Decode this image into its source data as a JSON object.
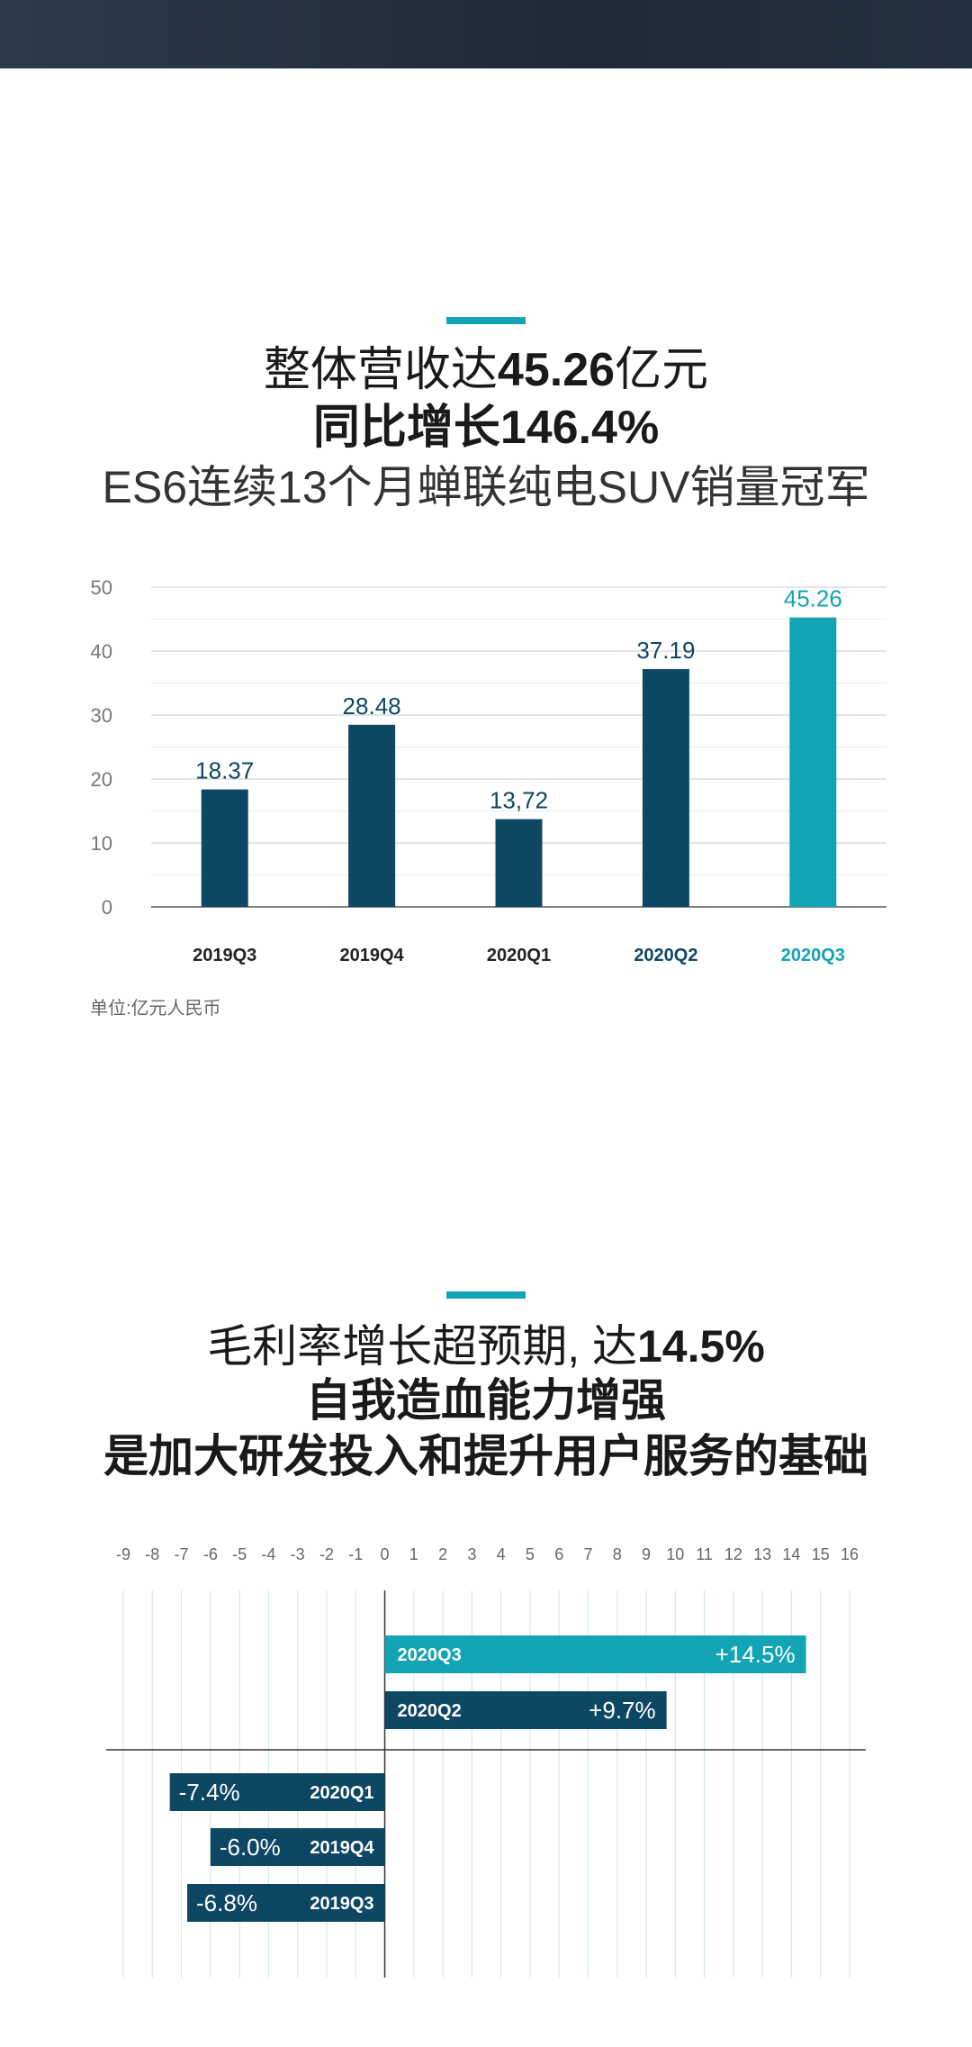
{
  "page": {
    "colors": {
      "dark": "#0e4763",
      "teal": "#12a4b4",
      "header": "#243140"
    },
    "section1": {
      "line1_prefix": "整体营收达",
      "line1_value": "45.26",
      "line1_suffix": "亿元",
      "line2": "同比增长146.4%",
      "line3": "ES6连续13个月蝉联纯电SUV销量冠军",
      "unit": "单位:亿元人民币"
    },
    "section2": {
      "line1_prefix": "毛利率增长超预期, 达",
      "line1_value": "14.5%",
      "line2": "自我造血能力增强",
      "line3": "是加大研发投入和提升用户服务的基础"
    }
  },
  "chart_data": [
    {
      "type": "bar",
      "categories": [
        "2019Q3",
        "2019Q4",
        "2020Q1",
        "2020Q2",
        "2020Q3"
      ],
      "values": [
        18.37,
        28.48,
        13.72,
        37.19,
        45.26
      ],
      "value_labels": [
        "18.37",
        "28.48",
        "13,72",
        "37.19",
        "45.26"
      ],
      "y_ticks": [
        0,
        10,
        20,
        30,
        40,
        50
      ],
      "ylim": [
        0,
        50
      ],
      "bar_colors": [
        "#0e4763",
        "#0e4763",
        "#0e4763",
        "#0e4763",
        "#12a4b4"
      ],
      "category_label_colors": [
        "#222222",
        "#222222",
        "#222222",
        "#0e4763",
        "#12a4b4"
      ],
      "grid": true
    },
    {
      "type": "bar",
      "orientation": "horizontal",
      "categories": [
        "2020Q3",
        "2020Q2",
        "2020Q1",
        "2019Q4",
        "2019Q3"
      ],
      "values": [
        14.5,
        9.7,
        -7.4,
        -6.0,
        -6.8
      ],
      "value_labels": [
        "+14.5%",
        "+9.7%",
        "-7.4%",
        "-6.0%",
        "-6.8%"
      ],
      "x_ticks": [
        -9,
        -8,
        -7,
        -6,
        -5,
        -4,
        -3,
        -2,
        -1,
        0,
        1,
        2,
        3,
        4,
        5,
        6,
        7,
        8,
        9,
        10,
        11,
        12,
        13,
        14,
        15,
        16
      ],
      "xlim": [
        -9,
        16
      ],
      "bar_colors": [
        "#12a4b4",
        "#0e4763",
        "#0e4763",
        "#0e4763",
        "#0e4763"
      ],
      "grid": true
    }
  ]
}
